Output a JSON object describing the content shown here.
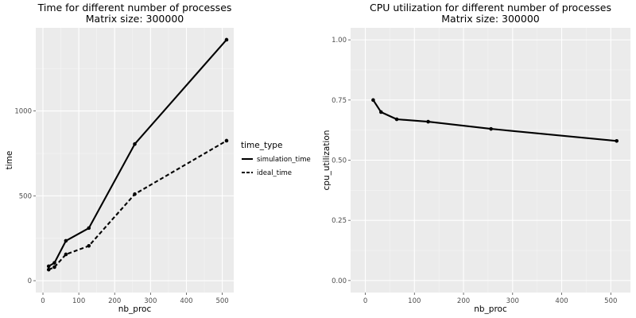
{
  "chart_data": [
    {
      "type": "line",
      "title": "Time for different number of processes",
      "subtitle": "Matrix size: 300000",
      "xlabel": "nb_proc",
      "ylabel": "time",
      "xlim": [
        -20,
        532
      ],
      "ylim": [
        -70,
        1490
      ],
      "xticks": [
        0,
        100,
        200,
        300,
        400,
        500
      ],
      "yticks": [
        0,
        500,
        1000
      ],
      "grid": true,
      "legend": {
        "title": "time_type",
        "position": "right",
        "entries": [
          {
            "label": "simulation_time",
            "style": "solid"
          },
          {
            "label": "ideal_time",
            "style": "dashed"
          }
        ]
      },
      "series": [
        {
          "name": "simulation_time",
          "style": "solid",
          "x": [
            16,
            32,
            64,
            128,
            256,
            512
          ],
          "y": [
            85,
            105,
            235,
            310,
            805,
            1420
          ]
        },
        {
          "name": "ideal_time",
          "style": "dashed",
          "x": [
            16,
            32,
            64,
            128,
            256,
            512
          ],
          "y": [
            65,
            80,
            155,
            205,
            510,
            825
          ]
        }
      ]
    },
    {
      "type": "line",
      "title": "CPU utilization for different number of processes",
      "subtitle": "Matrix size: 300000",
      "xlabel": "nb_proc",
      "ylabel": "cpu_utilization",
      "xlim": [
        -30,
        540
      ],
      "ylim": [
        -0.05,
        1.05
      ],
      "xticks": [
        0,
        100,
        200,
        300,
        400,
        500
      ],
      "yticks": [
        "0.00",
        "0.25",
        "0.50",
        "0.75",
        "1.00"
      ],
      "grid": true,
      "series": [
        {
          "style": "solid",
          "x": [
            16,
            32,
            64,
            128,
            256,
            512
          ],
          "y": [
            0.75,
            0.7,
            0.67,
            0.66,
            0.63,
            0.58
          ]
        }
      ]
    }
  ]
}
